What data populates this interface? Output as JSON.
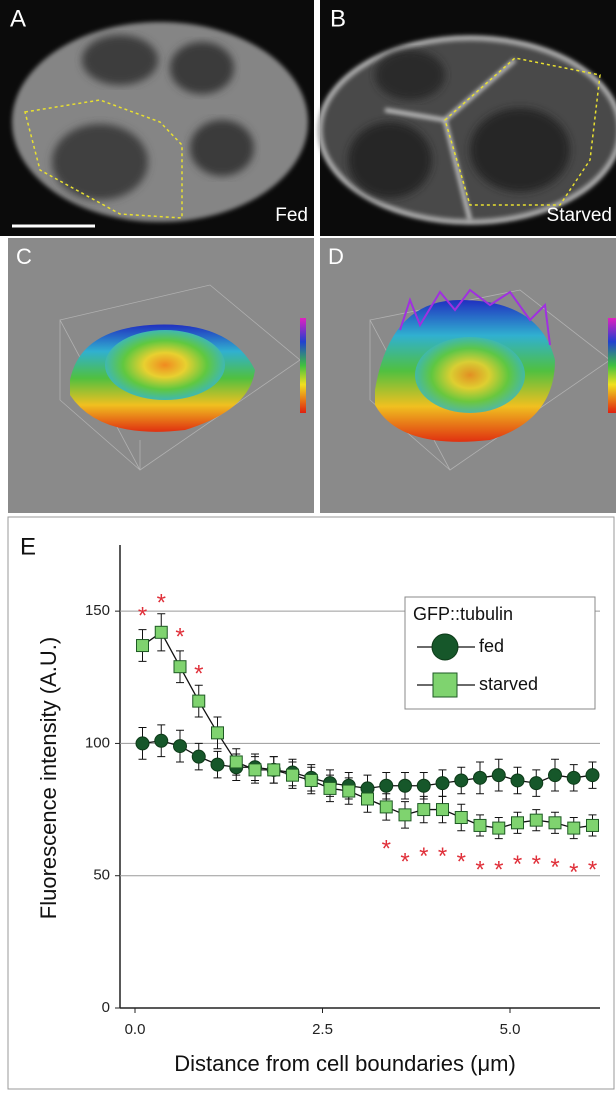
{
  "panels": [
    {
      "label": "A",
      "caption": "Fed"
    },
    {
      "label": "B",
      "caption": "Starved"
    },
    {
      "label": "C"
    },
    {
      "label": "D"
    }
  ],
  "chart_data": {
    "type": "line",
    "panel_label": "E",
    "x_label": "Distance from cell boundaries (μm)",
    "y_label": "Fluorescence intensity (A.U.)",
    "x": [
      0.1,
      0.35,
      0.6,
      0.85,
      1.1,
      1.35,
      1.6,
      1.85,
      2.1,
      2.35,
      2.6,
      2.85,
      3.1,
      3.35,
      3.6,
      3.85,
      4.1,
      4.35,
      4.6,
      4.85,
      5.1,
      5.35,
      5.6,
      5.85,
      6.1
    ],
    "series": [
      {
        "name": "fed",
        "color": "#16572a",
        "marker": "circle",
        "values": [
          100,
          101,
          99,
          95,
          92,
          91,
          91,
          90,
          89,
          87,
          85,
          84,
          83,
          84,
          84,
          84,
          85,
          86,
          87,
          88,
          86,
          85,
          88,
          87,
          88
        ],
        "errors": [
          6,
          6,
          6,
          5,
          5,
          5,
          5,
          5,
          5,
          5,
          5,
          5,
          5,
          5,
          5,
          5,
          5,
          5,
          6,
          6,
          5,
          5,
          6,
          5,
          5
        ]
      },
      {
        "name": "starved",
        "color": "#7fd36f",
        "marker": "square",
        "values": [
          137,
          142,
          129,
          116,
          104,
          93,
          90,
          90,
          88,
          86,
          83,
          82,
          79,
          76,
          73,
          75,
          75,
          72,
          69,
          68,
          70,
          71,
          70,
          68,
          69
        ],
        "errors": [
          6,
          7,
          6,
          6,
          6,
          5,
          5,
          5,
          5,
          5,
          5,
          5,
          5,
          5,
          5,
          5,
          5,
          5,
          4,
          4,
          4,
          4,
          4,
          4,
          4
        ]
      }
    ],
    "annotation_color": "#e0303a",
    "annotations": [
      {
        "text": "*",
        "x": 0.1,
        "y": 150
      },
      {
        "text": "*",
        "x": 0.35,
        "y": 155
      },
      {
        "text": "*",
        "x": 0.6,
        "y": 142
      },
      {
        "text": "*",
        "x": 0.85,
        "y": 128
      },
      {
        "text": "*",
        "x": 3.35,
        "y": 62
      },
      {
        "text": "*",
        "x": 3.6,
        "y": 57
      },
      {
        "text": "*",
        "x": 3.85,
        "y": 59
      },
      {
        "text": "*",
        "x": 4.1,
        "y": 59
      },
      {
        "text": "*",
        "x": 4.35,
        "y": 57
      },
      {
        "text": "*",
        "x": 4.6,
        "y": 54
      },
      {
        "text": "*",
        "x": 4.85,
        "y": 54
      },
      {
        "text": "*",
        "x": 5.1,
        "y": 56
      },
      {
        "text": "*",
        "x": 5.35,
        "y": 56
      },
      {
        "text": "*",
        "x": 5.6,
        "y": 55
      },
      {
        "text": "*",
        "x": 5.85,
        "y": 53
      },
      {
        "text": "*",
        "x": 6.1,
        "y": 54
      }
    ],
    "legend_title": "GFP::tubulin",
    "legend": "upper right",
    "xlim": [
      -0.2,
      6.2
    ],
    "xticks": [
      {
        "value": 0,
        "label": "0.0"
      },
      2.5,
      {
        "value": 5,
        "label": "5.0"
      }
    ],
    "ylim": [
      0,
      175
    ],
    "yticks": [
      0,
      50,
      100,
      150
    ],
    "grid": true
  }
}
